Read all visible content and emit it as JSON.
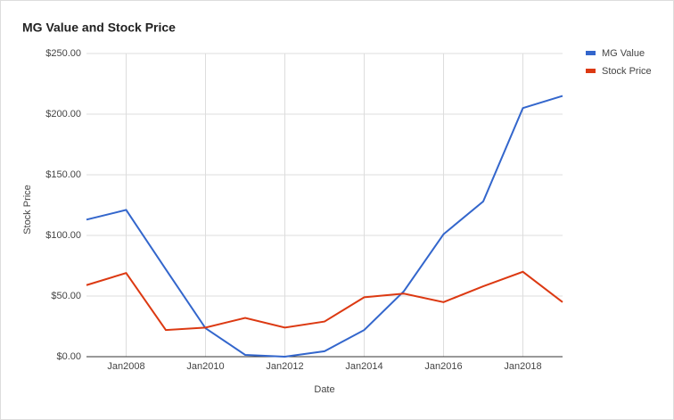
{
  "chart_data": {
    "type": "line",
    "title": "MG Value and Stock Price",
    "x_label": "Date",
    "y_label": "Stock Price",
    "x": [
      2007,
      2008,
      2009,
      2010,
      2011,
      2012,
      2013,
      2014,
      2015,
      2016,
      2017,
      2018,
      2019
    ],
    "xlim": [
      2007,
      2019
    ],
    "xticks": [
      {
        "value": 2008,
        "label": "Jan2008"
      },
      {
        "value": 2010,
        "label": "Jan2010"
      },
      {
        "value": 2012,
        "label": "Jan2012"
      },
      {
        "value": 2014,
        "label": "Jan2014"
      },
      {
        "value": 2016,
        "label": "Jan2016"
      },
      {
        "value": 2018,
        "label": "Jan2018"
      }
    ],
    "ylim": [
      0,
      250
    ],
    "yticks": [
      {
        "value": 0,
        "label": "$0.00"
      },
      {
        "value": 50,
        "label": "$50.00"
      },
      {
        "value": 100,
        "label": "$100.00"
      },
      {
        "value": 150,
        "label": "$150.00"
      },
      {
        "value": 200,
        "label": "$200.00"
      },
      {
        "value": 250,
        "label": "$250.00"
      }
    ],
    "grid": true,
    "legend": "right",
    "series": [
      {
        "name": "MG Value",
        "color": "#3366cc",
        "values": [
          113,
          121,
          72,
          23.5,
          1.5,
          0,
          4.5,
          22,
          54,
          101,
          128,
          205,
          215
        ]
      },
      {
        "name": "Stock Price",
        "color": "#dc3912",
        "values": [
          59,
          69,
          22,
          24,
          32,
          24,
          29,
          49,
          52,
          45,
          58,
          70,
          45
        ]
      }
    ]
  }
}
